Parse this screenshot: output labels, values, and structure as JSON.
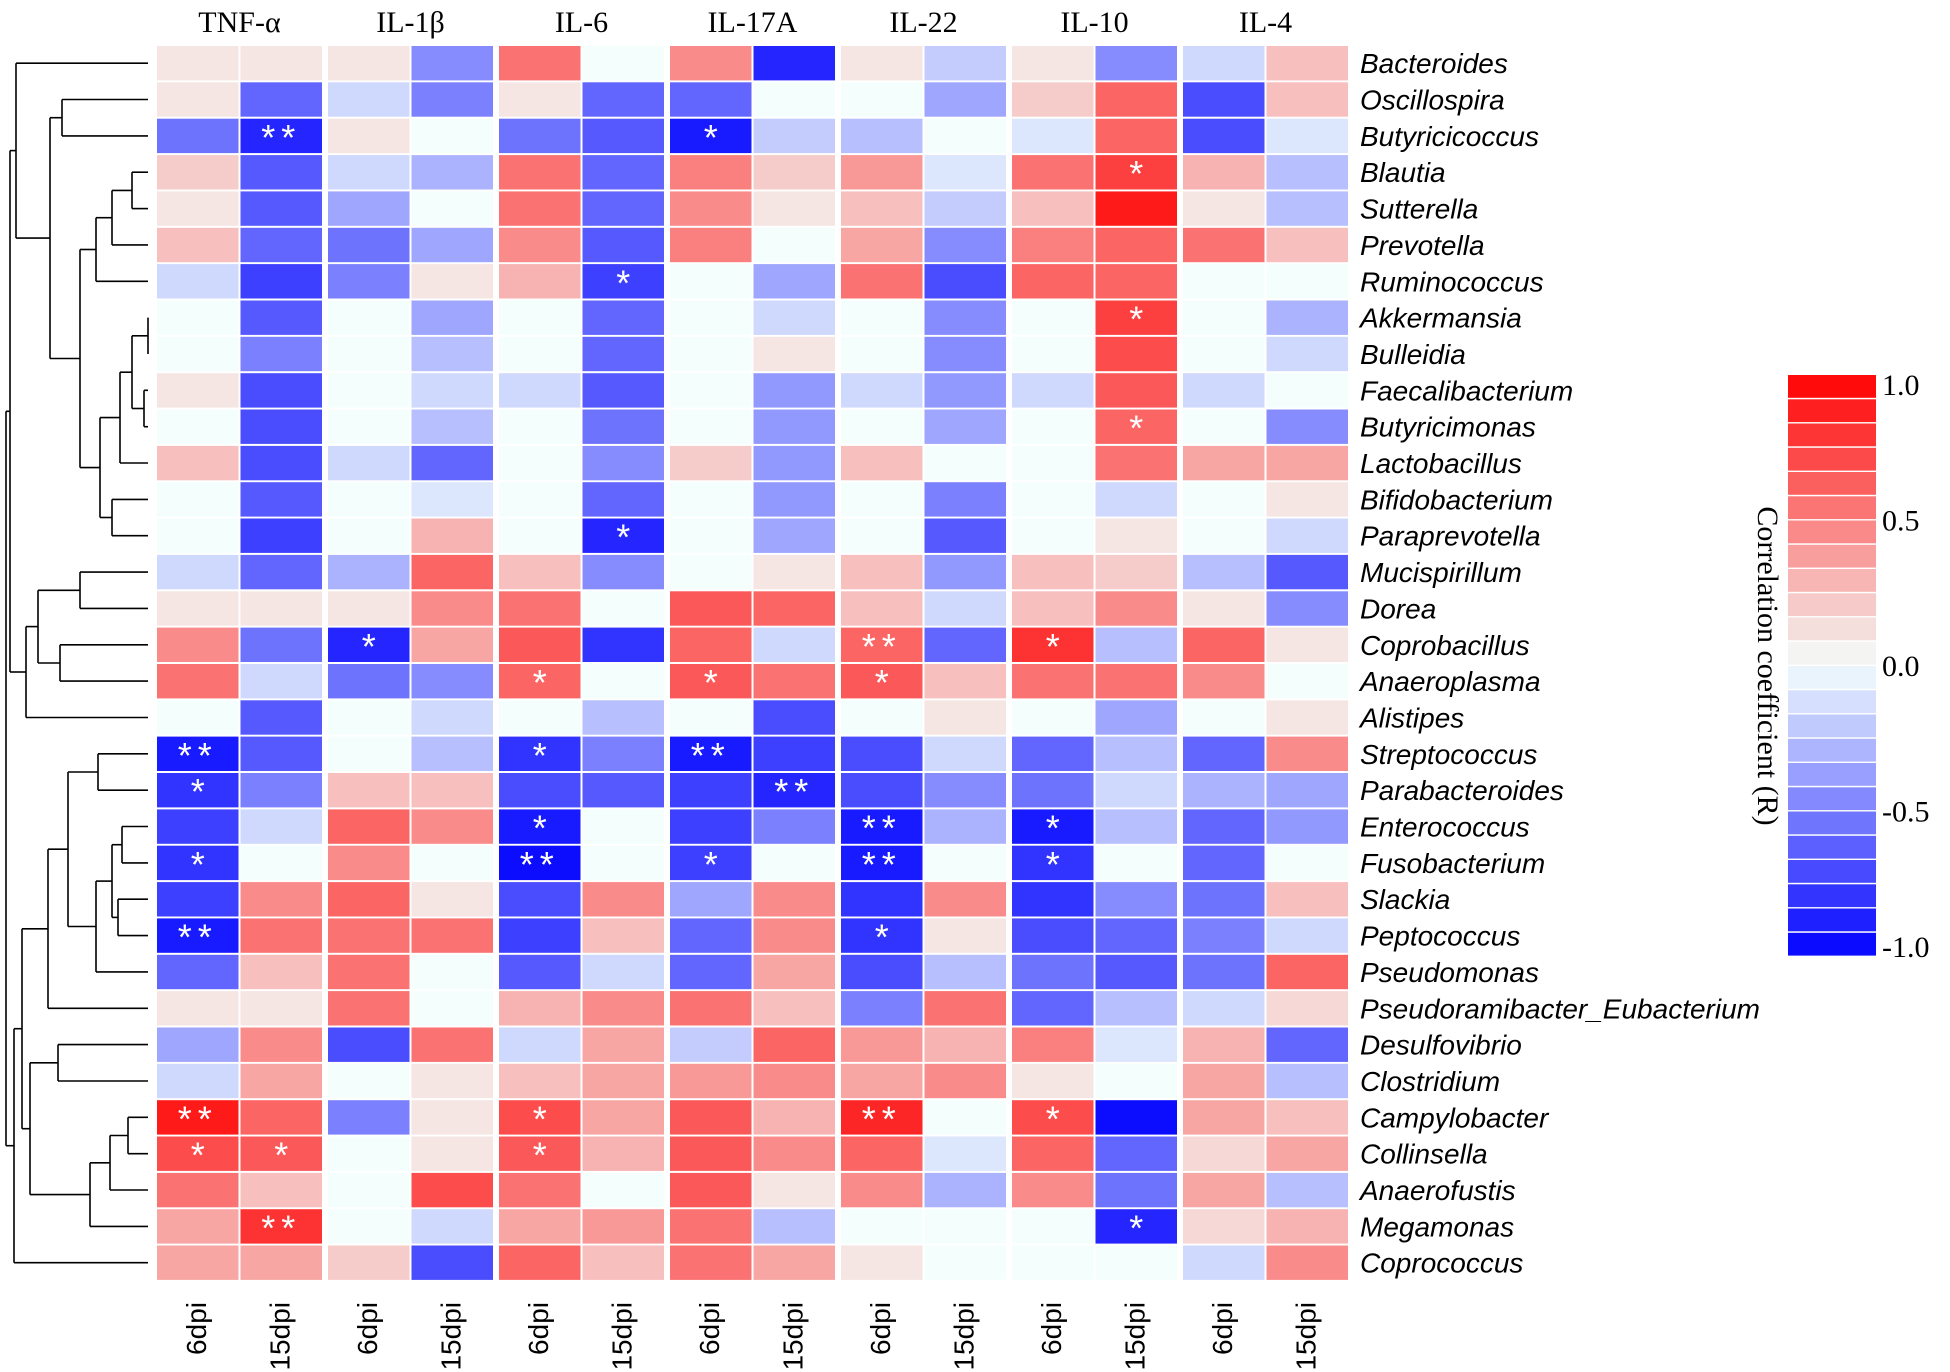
{
  "chart_data": {
    "type": "heatmap",
    "title": "",
    "column_groups": [
      "TNF-α",
      "IL-1β",
      "IL-6",
      "IL-17A",
      "IL-22",
      "IL-10",
      "IL-4"
    ],
    "column_labels": [
      "6dpi",
      "15dpi",
      "6dpi",
      "15dpi",
      "6dpi",
      "15dpi",
      "6dpi",
      "15dpi",
      "6dpi",
      "15dpi",
      "6dpi",
      "15dpi",
      "6dpi",
      "15dpi"
    ],
    "rows": [
      "Bacteroides",
      "Oscillospira",
      "Butyricicoccus",
      "Blautia",
      "Sutterella",
      "Prevotella",
      "Ruminococcus",
      "Akkermansia",
      "Bulleidia",
      "Faecalibacterium",
      "Butyricimonas",
      "Lactobacillus",
      "Bifidobacterium",
      "Paraprevotella",
      "Mucispirillum",
      "Dorea",
      "Coprobacillus",
      "Anaeroplasma",
      "Alistipes",
      "Streptococcus",
      "Parabacteroides",
      "Enterococcus",
      "Fusobacterium",
      "Slackia",
      "Peptococcus",
      "Pseudomonas",
      "Pseudoramibacter_Eubacterium",
      "Desulfovibrio",
      "Clostridium",
      "Campylobacter",
      "Collinsella",
      "Anaerofustis",
      "Megamonas",
      "Coprococcus"
    ],
    "values": [
      [
        0.1,
        0.1,
        0.1,
        -0.45,
        0.55,
        0.0,
        0.45,
        -0.85,
        0.1,
        -0.2,
        0.1,
        -0.45,
        -0.15,
        0.25
      ],
      [
        0.1,
        -0.6,
        -0.15,
        -0.5,
        0.1,
        -0.6,
        -0.6,
        0.0,
        0.0,
        -0.35,
        0.2,
        0.6,
        -0.7,
        0.25
      ],
      [
        -0.55,
        -0.85,
        0.1,
        0.0,
        -0.55,
        -0.65,
        -0.9,
        -0.2,
        -0.25,
        0.0,
        -0.1,
        0.6,
        -0.7,
        -0.1
      ],
      [
        0.2,
        -0.65,
        -0.15,
        -0.3,
        0.55,
        -0.6,
        0.5,
        0.2,
        0.4,
        -0.1,
        0.55,
        0.75,
        0.3,
        -0.25
      ],
      [
        0.1,
        -0.65,
        -0.35,
        0.0,
        0.55,
        -0.6,
        0.45,
        0.1,
        0.25,
        -0.2,
        0.25,
        0.9,
        0.1,
        -0.25
      ],
      [
        0.25,
        -0.6,
        -0.55,
        -0.35,
        0.45,
        -0.65,
        0.5,
        0.0,
        0.35,
        -0.45,
        0.5,
        0.6,
        0.55,
        0.25
      ],
      [
        -0.15,
        -0.75,
        -0.5,
        0.1,
        0.3,
        -0.75,
        0.0,
        -0.35,
        0.55,
        -0.7,
        0.6,
        0.6,
        0.0,
        0.0
      ],
      [
        0.0,
        -0.65,
        0.0,
        -0.35,
        0.0,
        -0.6,
        0.0,
        -0.15,
        0.0,
        -0.45,
        0.0,
        0.75,
        0.0,
        -0.3
      ],
      [
        0.0,
        -0.5,
        0.0,
        -0.25,
        0.0,
        -0.6,
        0.0,
        0.1,
        0.0,
        -0.45,
        0.0,
        0.7,
        0.0,
        -0.15
      ],
      [
        0.1,
        -0.7,
        0.0,
        -0.15,
        -0.15,
        -0.65,
        0.0,
        -0.4,
        -0.15,
        -0.4,
        -0.15,
        0.65,
        -0.15,
        0.0
      ],
      [
        0.0,
        -0.7,
        0.0,
        -0.25,
        0.0,
        -0.55,
        0.0,
        -0.4,
        0.0,
        -0.35,
        0.0,
        0.6,
        0.0,
        -0.45
      ],
      [
        0.25,
        -0.7,
        -0.15,
        -0.6,
        0.0,
        -0.45,
        0.2,
        -0.4,
        0.25,
        0.0,
        0.0,
        0.55,
        0.35,
        0.35
      ],
      [
        0.0,
        -0.65,
        0.0,
        -0.1,
        0.0,
        -0.6,
        0.0,
        -0.4,
        0.0,
        -0.5,
        0.0,
        -0.15,
        0.0,
        0.1
      ],
      [
        0.0,
        -0.75,
        0.0,
        0.3,
        0.0,
        -0.85,
        0.0,
        -0.35,
        0.0,
        -0.65,
        0.0,
        0.1,
        0.0,
        -0.15
      ],
      [
        -0.15,
        -0.6,
        -0.3,
        0.6,
        0.25,
        -0.45,
        0.0,
        0.1,
        0.25,
        -0.4,
        0.25,
        0.2,
        -0.25,
        -0.65
      ],
      [
        0.1,
        0.1,
        0.1,
        0.45,
        0.55,
        0.0,
        0.65,
        0.6,
        0.25,
        -0.15,
        0.25,
        0.45,
        0.1,
        -0.45
      ],
      [
        0.45,
        -0.55,
        -0.85,
        0.35,
        0.65,
        -0.8,
        0.6,
        -0.15,
        0.6,
        -0.6,
        0.8,
        -0.25,
        0.6,
        0.1
      ],
      [
        0.55,
        -0.15,
        -0.55,
        -0.45,
        0.6,
        0.0,
        0.65,
        0.55,
        0.65,
        0.25,
        0.55,
        0.55,
        0.45,
        0.0
      ],
      [
        0.0,
        -0.65,
        0.0,
        -0.15,
        0.0,
        -0.25,
        0.0,
        -0.7,
        0.0,
        0.1,
        0.0,
        -0.35,
        0.0,
        0.1
      ],
      [
        -0.9,
        -0.65,
        0.0,
        -0.25,
        -0.8,
        -0.5,
        -0.9,
        -0.75,
        -0.7,
        -0.15,
        -0.6,
        -0.25,
        -0.6,
        0.45
      ],
      [
        -0.8,
        -0.5,
        0.25,
        0.25,
        -0.7,
        -0.65,
        -0.75,
        -0.85,
        -0.7,
        -0.45,
        -0.55,
        -0.15,
        -0.3,
        -0.35
      ],
      [
        -0.75,
        -0.15,
        0.6,
        0.45,
        -0.9,
        0.0,
        -0.75,
        -0.5,
        -0.9,
        -0.3,
        -0.9,
        -0.25,
        -0.6,
        -0.4
      ],
      [
        -0.8,
        0.0,
        0.45,
        0.0,
        -0.95,
        0.0,
        -0.75,
        0.0,
        -0.9,
        0.0,
        -0.8,
        0.0,
        -0.6,
        0.0
      ],
      [
        -0.75,
        0.45,
        0.6,
        0.1,
        -0.7,
        0.45,
        -0.35,
        0.45,
        -0.8,
        0.45,
        -0.8,
        -0.45,
        -0.55,
        0.25
      ],
      [
        -0.9,
        0.55,
        0.55,
        0.55,
        -0.75,
        0.25,
        -0.6,
        0.45,
        -0.8,
        0.1,
        -0.7,
        -0.6,
        -0.5,
        -0.15
      ],
      [
        -0.6,
        0.25,
        0.55,
        0.0,
        -0.65,
        -0.15,
        -0.6,
        0.35,
        -0.7,
        -0.25,
        -0.55,
        -0.65,
        -0.55,
        0.6
      ],
      [
        0.1,
        0.1,
        0.55,
        0.0,
        0.3,
        0.45,
        0.55,
        0.25,
        -0.5,
        0.55,
        -0.6,
        -0.25,
        -0.15,
        0.15
      ],
      [
        -0.35,
        0.45,
        -0.7,
        0.55,
        -0.15,
        0.35,
        -0.2,
        0.6,
        0.4,
        0.3,
        0.5,
        -0.1,
        0.3,
        -0.6
      ],
      [
        -0.15,
        0.35,
        0.0,
        0.1,
        0.25,
        0.35,
        0.4,
        0.45,
        0.35,
        0.45,
        0.1,
        0.0,
        0.35,
        -0.25
      ],
      [
        0.9,
        0.6,
        -0.5,
        0.1,
        0.7,
        0.35,
        0.65,
        0.3,
        0.85,
        0.0,
        0.7,
        -0.95,
        0.35,
        0.25
      ],
      [
        0.7,
        0.65,
        0.0,
        0.1,
        0.65,
        0.3,
        0.65,
        0.45,
        0.6,
        -0.1,
        0.6,
        -0.6,
        0.15,
        0.35
      ],
      [
        0.55,
        0.25,
        0.0,
        0.7,
        0.55,
        0.0,
        0.65,
        0.1,
        0.45,
        -0.3,
        0.45,
        -0.55,
        0.35,
        -0.25
      ],
      [
        0.35,
        0.8,
        0.0,
        -0.15,
        0.35,
        0.4,
        0.55,
        -0.25,
        0.0,
        0.0,
        0.0,
        -0.85,
        0.15,
        0.3
      ],
      [
        0.35,
        0.35,
        0.2,
        -0.7,
        0.6,
        0.25,
        0.55,
        0.35,
        0.1,
        0.0,
        0.0,
        0.0,
        -0.15,
        0.45
      ]
    ],
    "significance": [
      [
        "",
        "",
        "",
        "",
        "",
        "",
        "",
        "",
        "",
        "",
        "",
        "",
        "",
        ""
      ],
      [
        "",
        "",
        "",
        "",
        "",
        "",
        "",
        "",
        "",
        "",
        "",
        "",
        "",
        ""
      ],
      [
        "",
        "**",
        "",
        "",
        "",
        "",
        "*",
        "",
        "",
        "",
        "",
        "",
        "",
        ""
      ],
      [
        "",
        "",
        "",
        "",
        "",
        "",
        "",
        "",
        "",
        "",
        "",
        "*",
        "",
        ""
      ],
      [
        "",
        "",
        "",
        "",
        "",
        "",
        "",
        "",
        "",
        "",
        "",
        "",
        "",
        ""
      ],
      [
        "",
        "",
        "",
        "",
        "",
        "",
        "",
        "",
        "",
        "",
        "",
        "",
        "",
        ""
      ],
      [
        "",
        "",
        "",
        "",
        "",
        "*",
        "",
        "",
        "",
        "",
        "",
        "",
        "",
        ""
      ],
      [
        "",
        "",
        "",
        "",
        "",
        "",
        "",
        "",
        "",
        "",
        "",
        "*",
        "",
        ""
      ],
      [
        "",
        "",
        "",
        "",
        "",
        "",
        "",
        "",
        "",
        "",
        "",
        "",
        "",
        ""
      ],
      [
        "",
        "",
        "",
        "",
        "",
        "",
        "",
        "",
        "",
        "",
        "",
        "",
        "",
        ""
      ],
      [
        "",
        "",
        "",
        "",
        "",
        "",
        "",
        "",
        "",
        "",
        "",
        "*",
        "",
        ""
      ],
      [
        "",
        "",
        "",
        "",
        "",
        "",
        "",
        "",
        "",
        "",
        "",
        "",
        "",
        ""
      ],
      [
        "",
        "",
        "",
        "",
        "",
        "",
        "",
        "",
        "",
        "",
        "",
        "",
        "",
        ""
      ],
      [
        "",
        "",
        "",
        "",
        "",
        "*",
        "",
        "",
        "",
        "",
        "",
        "",
        "",
        ""
      ],
      [
        "",
        "",
        "",
        "",
        "",
        "",
        "",
        "",
        "",
        "",
        "",
        "",
        "",
        ""
      ],
      [
        "",
        "",
        "",
        "",
        "",
        "",
        "",
        "",
        "",
        "",
        "",
        "",
        "",
        ""
      ],
      [
        "",
        "",
        "*",
        "",
        "",
        "",
        "",
        "",
        "**",
        "",
        "*",
        "",
        "",
        ""
      ],
      [
        "",
        "",
        "",
        "",
        "*",
        "",
        "*",
        "",
        "*",
        "",
        "",
        "",
        "",
        ""
      ],
      [
        "",
        "",
        "",
        "",
        "",
        "",
        "",
        "",
        "",
        "",
        "",
        "",
        "",
        ""
      ],
      [
        "**",
        "",
        "",
        "",
        "*",
        "",
        "**",
        "",
        "",
        "",
        "",
        "",
        "",
        ""
      ],
      [
        "*",
        "",
        "",
        "",
        "",
        "",
        "",
        "**",
        "",
        "",
        "",
        "",
        "",
        ""
      ],
      [
        "",
        "",
        "",
        "",
        "*",
        "",
        "",
        "",
        "**",
        "",
        "*",
        "",
        "",
        ""
      ],
      [
        "*",
        "",
        "",
        "",
        "**",
        "",
        "*",
        "",
        "**",
        "",
        "*",
        "",
        "",
        ""
      ],
      [
        "",
        "",
        "",
        "",
        "",
        "",
        "",
        "",
        "",
        "",
        "",
        "",
        "",
        ""
      ],
      [
        "**",
        "",
        "",
        "",
        "",
        "",
        "",
        "",
        "*",
        "",
        "",
        "",
        "",
        ""
      ],
      [
        "",
        "",
        "",
        "",
        "",
        "",
        "",
        "",
        "",
        "",
        "",
        "",
        "",
        ""
      ],
      [
        "",
        "",
        "",
        "",
        "",
        "",
        "",
        "",
        "",
        "",
        "",
        "",
        "",
        ""
      ],
      [
        "",
        "",
        "",
        "",
        "",
        "",
        "",
        "",
        "",
        "",
        "",
        "",
        "",
        ""
      ],
      [
        "",
        "",
        "",
        "",
        "",
        "",
        "",
        "",
        "",
        "",
        "",
        "",
        "",
        ""
      ],
      [
        "**",
        "",
        "",
        "",
        "*",
        "",
        "",
        "",
        "**",
        "",
        "*",
        "",
        "",
        ""
      ],
      [
        "*",
        "*",
        "",
        "",
        "*",
        "",
        "",
        "",
        "",
        "",
        "",
        "",
        "",
        ""
      ],
      [
        "",
        "",
        "",
        "",
        "",
        "",
        "",
        "",
        "",
        "",
        "",
        "",
        "",
        ""
      ],
      [
        "",
        "**",
        "",
        "",
        "",
        "",
        "",
        "",
        "",
        "",
        "",
        "*",
        "",
        ""
      ],
      [
        "",
        "",
        "",
        "",
        "",
        "",
        "",
        "",
        "",
        "",
        "",
        "",
        "",
        ""
      ]
    ],
    "colorbar": {
      "label": "Correlation coefficient (R)",
      "range": [
        -1.0,
        1.0
      ],
      "tick_values": [
        1.0,
        0.5,
        0.0,
        -0.5,
        -1.0
      ],
      "tick_labels": [
        "1.0",
        "0.5",
        "0.0",
        "-0.5",
        "-1.0"
      ]
    },
    "colors": {
      "high": "#ff0000",
      "mid": "#f4fffd",
      "low": "#0000ff",
      "grid": "#ffffff",
      "star": "#ffffff",
      "line": "#000000"
    },
    "dendrogram": "hierarchical clustering of rows, drawn at left"
  }
}
